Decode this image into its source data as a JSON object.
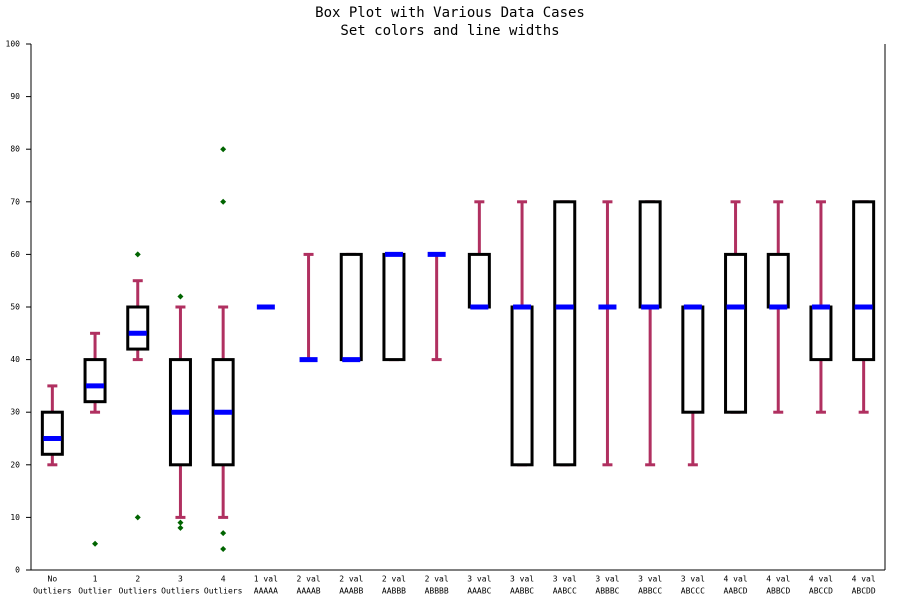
{
  "chart_data": {
    "type": "box",
    "title": "Box Plot with Various Data Cases",
    "subtitle": "Set colors and line widths",
    "categories": [
      [
        "No",
        "Outliers"
      ],
      [
        "1",
        "Outlier"
      ],
      [
        "2",
        "Outliers"
      ],
      [
        "3",
        "Outliers"
      ],
      [
        "4",
        "Outliers"
      ],
      [
        "1 val",
        "AAAAA"
      ],
      [
        "2 val",
        "AAAAB"
      ],
      [
        "2 val",
        "AAABB"
      ],
      [
        "2 val",
        "AABBB"
      ],
      [
        "2 val",
        "ABBBB"
      ],
      [
        "3 val",
        "AAABC"
      ],
      [
        "3 val",
        "AABBC"
      ],
      [
        "3 val",
        "AABCC"
      ],
      [
        "3 val",
        "ABBBC"
      ],
      [
        "3 val",
        "ABBCC"
      ],
      [
        "3 val",
        "ABCCC"
      ],
      [
        "4 val",
        "AABCD"
      ],
      [
        "4 val",
        "ABBCD"
      ],
      [
        "4 val",
        "ABCCD"
      ],
      [
        "4 val",
        "ABCDD"
      ]
    ],
    "boxes": [
      {
        "low": 20,
        "q1": 22,
        "median": 25,
        "q3": 30,
        "high": 35,
        "outliers": []
      },
      {
        "low": 30,
        "q1": 32,
        "median": 35,
        "q3": 40,
        "high": 45,
        "outliers": [
          5
        ]
      },
      {
        "low": 40,
        "q1": 42,
        "median": 45,
        "q3": 50,
        "high": 55,
        "outliers": [
          60,
          10
        ]
      },
      {
        "low": 10,
        "q1": 20,
        "median": 30,
        "q3": 40,
        "high": 50,
        "outliers": [
          52,
          9,
          8
        ]
      },
      {
        "low": 10,
        "q1": 20,
        "median": 30,
        "q3": 40,
        "high": 50,
        "outliers": [
          80,
          70,
          7,
          4
        ]
      },
      {
        "low": 50,
        "q1": 50,
        "median": 50,
        "q3": 50,
        "high": 50,
        "outliers": []
      },
      {
        "low": 40,
        "q1": 40,
        "median": 40,
        "q3": 40,
        "high": 60,
        "outliers": []
      },
      {
        "low": 40,
        "q1": 40,
        "median": 40,
        "q3": 60,
        "high": 60,
        "outliers": []
      },
      {
        "low": 40,
        "q1": 40,
        "median": 60,
        "q3": 60,
        "high": 60,
        "outliers": []
      },
      {
        "low": 40,
        "q1": 60,
        "median": 60,
        "q3": 60,
        "high": 60,
        "outliers": []
      },
      {
        "low": 50,
        "q1": 50,
        "median": 50,
        "q3": 60,
        "high": 70,
        "outliers": []
      },
      {
        "low": 20,
        "q1": 20,
        "median": 50,
        "q3": 50,
        "high": 70,
        "outliers": []
      },
      {
        "low": 20,
        "q1": 20,
        "median": 50,
        "q3": 70,
        "high": 70,
        "outliers": []
      },
      {
        "low": 20,
        "q1": 50,
        "median": 50,
        "q3": 50,
        "high": 70,
        "outliers": []
      },
      {
        "low": 20,
        "q1": 50,
        "median": 50,
        "q3": 70,
        "high": 70,
        "outliers": []
      },
      {
        "low": 20,
        "q1": 30,
        "median": 50,
        "q3": 50,
        "high": 50,
        "outliers": []
      },
      {
        "low": 30,
        "q1": 30,
        "median": 50,
        "q3": 60,
        "high": 70,
        "outliers": []
      },
      {
        "low": 30,
        "q1": 50,
        "median": 50,
        "q3": 60,
        "high": 70,
        "outliers": []
      },
      {
        "low": 30,
        "q1": 40,
        "median": 50,
        "q3": 50,
        "high": 70,
        "outliers": []
      },
      {
        "low": 30,
        "q1": 40,
        "median": 50,
        "q3": 70,
        "high": 70,
        "outliers": []
      }
    ],
    "box_color": "#000000",
    "whisker_color": "#b03060",
    "median_color": "#0000ff",
    "outlier_color": "#006400",
    "ylim": [
      0,
      100
    ],
    "yticks": [
      0,
      10,
      20,
      30,
      40,
      50,
      60,
      70,
      80,
      90,
      100
    ],
    "grid": false
  }
}
